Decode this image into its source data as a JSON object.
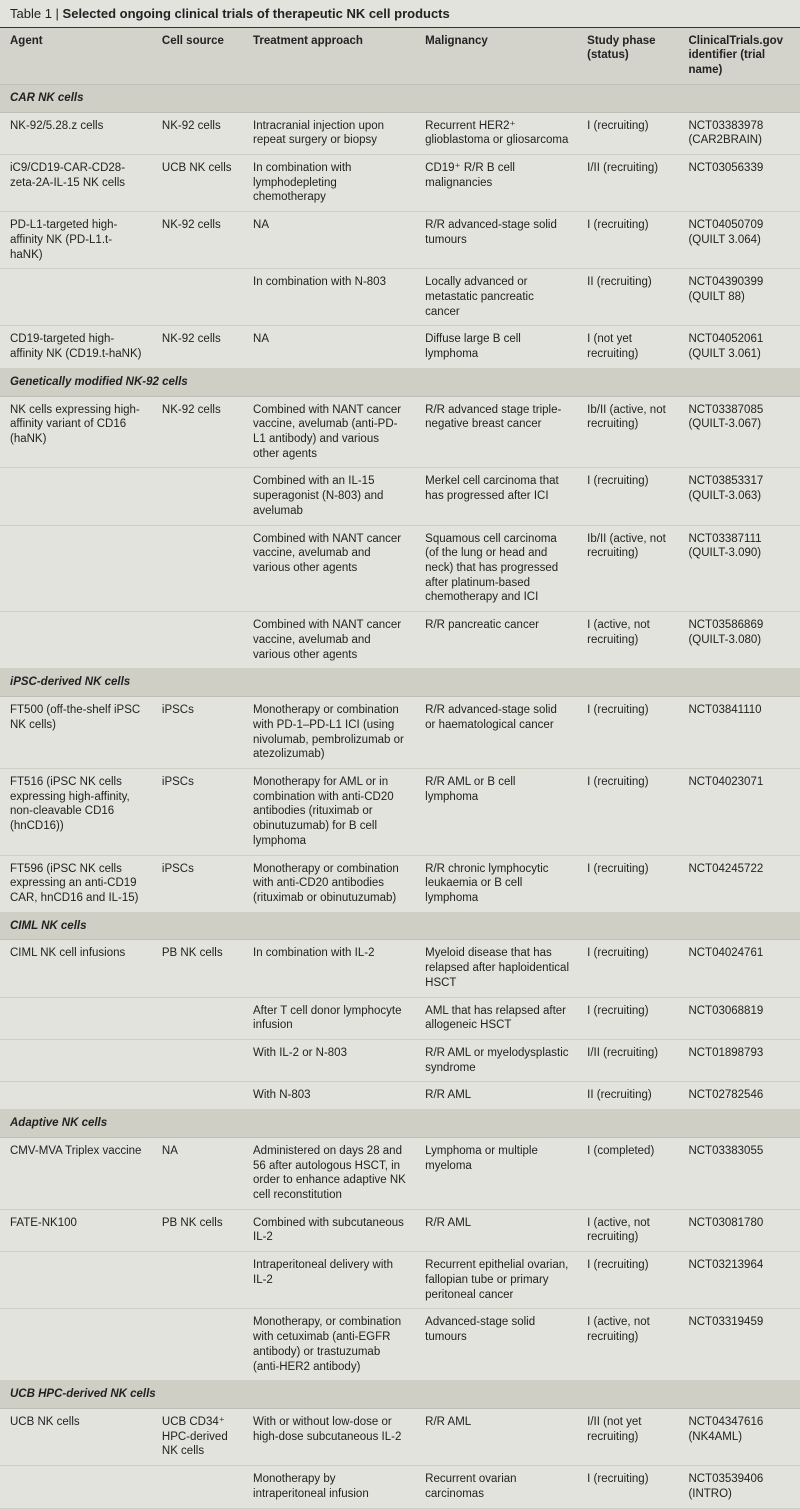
{
  "table": {
    "label": "Table 1 |",
    "caption": "Selected ongoing clinical trials of therapeutic NK cell products",
    "columns": [
      "Agent",
      "Cell source",
      "Treatment approach",
      "Malignancy",
      "Study phase (status)",
      "ClinicalTrials.gov identifier (trial name)"
    ],
    "sections": [
      {
        "name": "CAR NK cells",
        "rows": [
          {
            "agent": "NK-92/5.28.z cells",
            "source": "NK-92 cells",
            "treat": "Intracranial injection upon repeat surgery or biopsy",
            "malig": "Recurrent HER2⁺ glioblastoma or gliosarcoma",
            "phase": "I (recruiting)",
            "id": "NCT03383978 (CAR2BRAIN)"
          },
          {
            "agent": "iC9/CD19-CAR-CD28-zeta-2A-IL-15 NK cells",
            "source": "UCB NK cells",
            "treat": "In combination with lymphodepleting chemotherapy",
            "malig": "CD19⁺ R/R B cell malignancies",
            "phase": "I/II (recruiting)",
            "id": "NCT03056339"
          },
          {
            "agent": "PD-L1-targeted high-affinity NK (PD-L1.t-haNK)",
            "source": "NK-92 cells",
            "treat": "NA",
            "malig": "R/R advanced-stage solid tumours",
            "phase": "I (recruiting)",
            "id": "NCT04050709 (QUILT 3.064)"
          },
          {
            "agent": "",
            "source": "",
            "treat": "In combination with N-803",
            "malig": "Locally advanced or metastatic pancreatic cancer",
            "phase": "II (recruiting)",
            "id": "NCT04390399 (QUILT 88)"
          },
          {
            "agent": "CD19-targeted high-affinity NK (CD19.t-haNK)",
            "source": "NK-92 cells",
            "treat": "NA",
            "malig": "Diffuse large B cell lymphoma",
            "phase": "I (not yet recruiting)",
            "id": "NCT04052061 (QUILT 3.061)"
          }
        ]
      },
      {
        "name": "Genetically modified NK-92 cells",
        "rows": [
          {
            "agent": "NK cells expressing high-affinity variant of CD16 (haNK)",
            "source": "NK-92 cells",
            "treat": "Combined with NANT cancer vaccine, avelumab (anti-PD-L1 antibody) and various other agents",
            "malig": "R/R advanced stage triple-negative breast cancer",
            "phase": "Ib/II (active, not recruiting)",
            "id": "NCT03387085 (QUILT-3.067)"
          },
          {
            "agent": "",
            "source": "",
            "treat": "Combined with an IL-15 superagonist (N-803) and avelumab",
            "malig": "Merkel cell carcinoma that has progressed after ICI",
            "phase": "I (recruiting)",
            "id": "NCT03853317 (QUILT-3.063)"
          },
          {
            "agent": "",
            "source": "",
            "treat": "Combined with NANT cancer vaccine, avelumab and various other agents",
            "malig": "Squamous cell carcinoma (of the lung or head and neck) that has progressed after platinum-based chemotherapy and ICI",
            "phase": "Ib/II (active, not recruiting)",
            "id": "NCT03387111 (QUILT-3.090)"
          },
          {
            "agent": "",
            "source": "",
            "treat": "Combined with NANT cancer vaccine, avelumab and various other agents",
            "malig": "R/R pancreatic cancer",
            "phase": "I (active, not recruiting)",
            "id": "NCT03586869 (QUILT-3.080)"
          }
        ]
      },
      {
        "name": "iPSC-derived NK cells",
        "rows": [
          {
            "agent": "FT500 (off-the-shelf iPSC NK cells)",
            "source": "iPSCs",
            "treat": "Monotherapy or combination with PD-1–PD-L1 ICI (using nivolumab, pembrolizumab or atezolizumab)",
            "malig": "R/R advanced-stage solid or haematological cancer",
            "phase": "I (recruiting)",
            "id": "NCT03841110"
          },
          {
            "agent": "FT516 (iPSC NK cells expressing high-affinity, non-cleavable CD16 (hnCD16))",
            "source": "iPSCs",
            "treat": "Monotherapy for AML or in combination with anti-CD20 antibodies (rituximab or obinutuzumab) for B cell lymphoma",
            "malig": "R/R AML or B cell lymphoma",
            "phase": "I (recruiting)",
            "id": "NCT04023071"
          },
          {
            "agent": "FT596 (iPSC NK cells expressing an anti-CD19 CAR, hnCD16 and IL-15)",
            "source": "iPSCs",
            "treat": "Monotherapy or combination with anti-CD20 antibodies (rituximab or obinutuzumab)",
            "malig": "R/R chronic lymphocytic leukaemia or B cell lymphoma",
            "phase": "I (recruiting)",
            "id": "NCT04245722"
          }
        ]
      },
      {
        "name": "CIML NK cells",
        "rows": [
          {
            "agent": "CIML NK cell infusions",
            "source": "PB NK cells",
            "treat": "In combination with IL-2",
            "malig": "Myeloid disease that has relapsed after haploidentical HSCT",
            "phase": "I (recruiting)",
            "id": "NCT04024761"
          },
          {
            "agent": "",
            "source": "",
            "treat": "After T cell donor lymphocyte infusion",
            "malig": "AML that has relapsed after allogeneic HSCT",
            "phase": "I (recruiting)",
            "id": "NCT03068819"
          },
          {
            "agent": "",
            "source": "",
            "treat": "With IL-2 or N-803",
            "malig": "R/R AML or myelodysplastic syndrome",
            "phase": "I/II (recruiting)",
            "id": "NCT01898793"
          },
          {
            "agent": "",
            "source": "",
            "treat": "With N-803",
            "malig": "R/R AML",
            "phase": "II (recruiting)",
            "id": "NCT02782546"
          }
        ]
      },
      {
        "name": "Adaptive NK cells",
        "rows": [
          {
            "agent": "CMV-MVA Triplex vaccine",
            "source": "NA",
            "treat": "Administered on days 28 and 56 after autologous HSCT, in order to enhance adaptive NK cell reconstitution",
            "malig": "Lymphoma or multiple myeloma",
            "phase": "I (completed)",
            "id": "NCT03383055"
          },
          {
            "agent": "FATE-NK100",
            "source": "PB NK cells",
            "treat": "Combined with subcutaneous IL-2",
            "malig": "R/R AML",
            "phase": "I (active, not recruiting)",
            "id": "NCT03081780"
          },
          {
            "agent": "",
            "source": "",
            "treat": "Intraperitoneal delivery with IL-2",
            "malig": "Recurrent epithelial ovarian, fallopian tube or primary peritoneal cancer",
            "phase": "I (recruiting)",
            "id": "NCT03213964"
          },
          {
            "agent": "",
            "source": "",
            "treat": "Monotherapy, or combination with cetuximab (anti-EGFR antibody) or trastuzumab (anti-HER2 antibody)",
            "malig": "Advanced-stage solid tumours",
            "phase": "I (active, not recruiting)",
            "id": "NCT03319459"
          }
        ]
      },
      {
        "name": "UCB HPC-derived NK cells",
        "rows": [
          {
            "agent": "UCB NK cells",
            "source": "UCB CD34⁺ HPC-derived NK cells",
            "treat": "With or without low-dose or high-dose subcutaneous IL-2",
            "malig": "R/R AML",
            "phase": "I/II (not yet recruiting)",
            "id": "NCT04347616 (NK4AML)"
          },
          {
            "agent": "",
            "source": "",
            "treat": "Monotherapy by intraperitoneal infusion",
            "malig": "Recurrent ovarian carcinomas",
            "phase": "I (recruiting)",
            "id": "NCT03539406 (INTRO)"
          }
        ]
      }
    ]
  }
}
